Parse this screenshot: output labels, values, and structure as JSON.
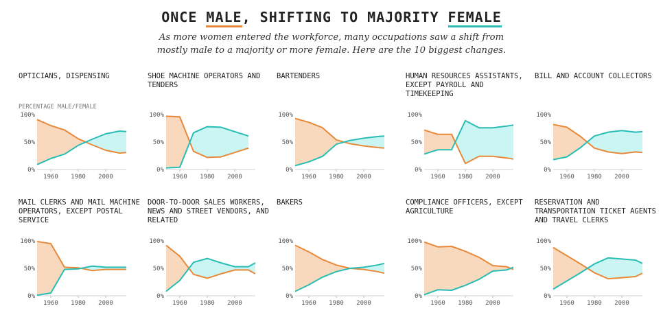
{
  "header": {
    "title_pre": "ONCE ",
    "title_male": "MALE",
    "title_mid": ", SHIFTING TO MAJORITY ",
    "title_female": "FEMALE",
    "subtitle": "As more women entered the workforce, many occupations saw a shift from mostly male to a majority or more female. Here are the 10 biggest changes.",
    "ylabel": "PERCENTAGE MALE/FEMALE"
  },
  "colors": {
    "male": "#e8893a",
    "female": "#28bdb4",
    "male_fill": "#f9d9bd",
    "female_fill": "#caf5f3"
  },
  "chart_data": [
    {
      "type": "line",
      "title": "Opticians, dispensing",
      "x": [
        1950,
        1960,
        1970,
        1980,
        1990,
        2000,
        2010,
        2015
      ],
      "series": [
        {
          "name": "Male",
          "values": [
            91,
            80,
            72,
            56,
            45,
            35,
            30,
            31
          ]
        },
        {
          "name": "Female",
          "values": [
            9,
            20,
            28,
            44,
            55,
            65,
            70,
            69
          ]
        }
      ],
      "xticks": [
        "1960",
        "1980",
        "2000"
      ],
      "yticks": [
        "100%",
        "50%",
        "0%"
      ],
      "ylim": [
        0,
        100
      ],
      "xlim": [
        1950,
        2015
      ]
    },
    {
      "type": "line",
      "title": "Shoe machine operators and tenders",
      "x": [
        1950,
        1960,
        1970,
        1980,
        1990,
        2000,
        2010
      ],
      "series": [
        {
          "name": "Male",
          "values": [
            97,
            96,
            33,
            22,
            23,
            31,
            39
          ]
        },
        {
          "name": "Female",
          "values": [
            3,
            4,
            67,
            78,
            77,
            69,
            61
          ]
        }
      ],
      "xticks": [
        "1960",
        "1980",
        "2000"
      ],
      "yticks": [
        "100%",
        "50%",
        "0%"
      ],
      "ylim": [
        0,
        100
      ],
      "xlim": [
        1950,
        2015
      ]
    },
    {
      "type": "line",
      "title": "Bartenders",
      "x": [
        1950,
        1960,
        1970,
        1980,
        1990,
        2000,
        2010,
        2015
      ],
      "series": [
        {
          "name": "Male",
          "values": [
            93,
            86,
            76,
            54,
            47,
            43,
            40,
            39
          ]
        },
        {
          "name": "Female",
          "values": [
            7,
            14,
            24,
            46,
            53,
            57,
            60,
            61
          ]
        }
      ],
      "xticks": [
        "1960",
        "1980",
        "2000"
      ],
      "yticks": [
        "100%",
        "50%",
        "0%"
      ],
      "ylim": [
        0,
        100
      ],
      "xlim": [
        1950,
        2015
      ]
    },
    {
      "type": "line",
      "title": "Human resources assistants, except payroll and timekeeping",
      "x": [
        1950,
        1960,
        1970,
        1980,
        1990,
        2000,
        2010,
        2015
      ],
      "series": [
        {
          "name": "Male",
          "values": [
            72,
            64,
            64,
            11,
            24,
            24,
            21,
            19
          ]
        },
        {
          "name": "Female",
          "values": [
            28,
            36,
            36,
            89,
            76,
            76,
            79,
            81
          ]
        }
      ],
      "xticks": [
        "1960",
        "1980",
        "2000"
      ],
      "yticks": [
        "100%",
        "50%",
        "0%"
      ],
      "ylim": [
        0,
        100
      ],
      "xlim": [
        1950,
        2015
      ]
    },
    {
      "type": "line",
      "title": "Bill and account collectors",
      "x": [
        1950,
        1960,
        1970,
        1980,
        1990,
        2000,
        2010,
        2015
      ],
      "series": [
        {
          "name": "Male",
          "values": [
            82,
            77,
            60,
            39,
            32,
            29,
            32,
            31
          ]
        },
        {
          "name": "Female",
          "values": [
            18,
            23,
            40,
            61,
            68,
            71,
            68,
            69
          ]
        }
      ],
      "xticks": [
        "1960",
        "1980",
        "2000"
      ],
      "yticks": [
        "100%",
        "50%",
        "0%"
      ],
      "ylim": [
        0,
        100
      ],
      "xlim": [
        1950,
        2015
      ]
    },
    {
      "type": "line",
      "title": "Mail clerks and mail machine operators, except postal service",
      "x": [
        1950,
        1960,
        1970,
        1980,
        1990,
        2000,
        2010,
        2015
      ],
      "series": [
        {
          "name": "Male",
          "values": [
            99,
            95,
            52,
            51,
            46,
            48,
            48,
            48
          ]
        },
        {
          "name": "Female",
          "values": [
            1,
            5,
            48,
            49,
            54,
            52,
            52,
            52
          ]
        }
      ],
      "xticks": [
        "1960",
        "1980",
        "2000"
      ],
      "yticks": [
        "100%",
        "50%",
        "0%"
      ],
      "ylim": [
        0,
        100
      ],
      "xlim": [
        1950,
        2015
      ]
    },
    {
      "type": "line",
      "title": "Door-to-door sales workers, news and street vendors, and related",
      "x": [
        1950,
        1960,
        1970,
        1980,
        1990,
        2000,
        2010,
        2015
      ],
      "series": [
        {
          "name": "Male",
          "values": [
            92,
            72,
            39,
            32,
            40,
            47,
            47,
            40
          ]
        },
        {
          "name": "Female",
          "values": [
            8,
            28,
            61,
            68,
            60,
            53,
            53,
            60
          ]
        }
      ],
      "xticks": [
        "1960",
        "1980",
        "2000"
      ],
      "yticks": [
        "100%",
        "50%",
        "0%"
      ],
      "ylim": [
        0,
        100
      ],
      "xlim": [
        1950,
        2015
      ]
    },
    {
      "type": "line",
      "title": "Bakers",
      "x": [
        1950,
        1960,
        1970,
        1980,
        1990,
        2000,
        2010,
        2015
      ],
      "series": [
        {
          "name": "Male",
          "values": [
            92,
            80,
            66,
            56,
            50,
            48,
            44,
            41
          ]
        },
        {
          "name": "Female",
          "values": [
            8,
            20,
            34,
            44,
            50,
            52,
            56,
            59
          ]
        }
      ],
      "xticks": [
        "1960",
        "1980",
        "2000"
      ],
      "yticks": [
        "100%",
        "50%",
        "0%"
      ],
      "ylim": [
        0,
        100
      ],
      "xlim": [
        1950,
        2015
      ]
    },
    {
      "type": "line",
      "title": "Compliance officers, except agriculture",
      "x": [
        1950,
        1960,
        1970,
        1980,
        1990,
        2000,
        2010,
        2015
      ],
      "series": [
        {
          "name": "Male",
          "values": [
            98,
            89,
            90,
            81,
            70,
            55,
            53,
            48
          ]
        },
        {
          "name": "Female",
          "values": [
            2,
            11,
            10,
            19,
            30,
            45,
            47,
            52
          ]
        }
      ],
      "xticks": [
        "1960",
        "1980",
        "2000"
      ],
      "yticks": [
        "100%",
        "50%",
        "0%"
      ],
      "ylim": [
        0,
        100
      ],
      "xlim": [
        1950,
        2015
      ]
    },
    {
      "type": "line",
      "title": "Reservation and transportation ticket agents and travel clerks",
      "x": [
        1950,
        1960,
        1970,
        1980,
        1990,
        2000,
        2010,
        2015
      ],
      "series": [
        {
          "name": "Male",
          "values": [
            88,
            73,
            58,
            42,
            31,
            33,
            35,
            41
          ]
        },
        {
          "name": "Female",
          "values": [
            12,
            27,
            42,
            58,
            69,
            67,
            65,
            59
          ]
        }
      ],
      "xticks": [
        "1960",
        "1980",
        "2000"
      ],
      "yticks": [
        "100%",
        "50%",
        "0%"
      ],
      "ylim": [
        0,
        100
      ],
      "xlim": [
        1950,
        2015
      ]
    }
  ]
}
